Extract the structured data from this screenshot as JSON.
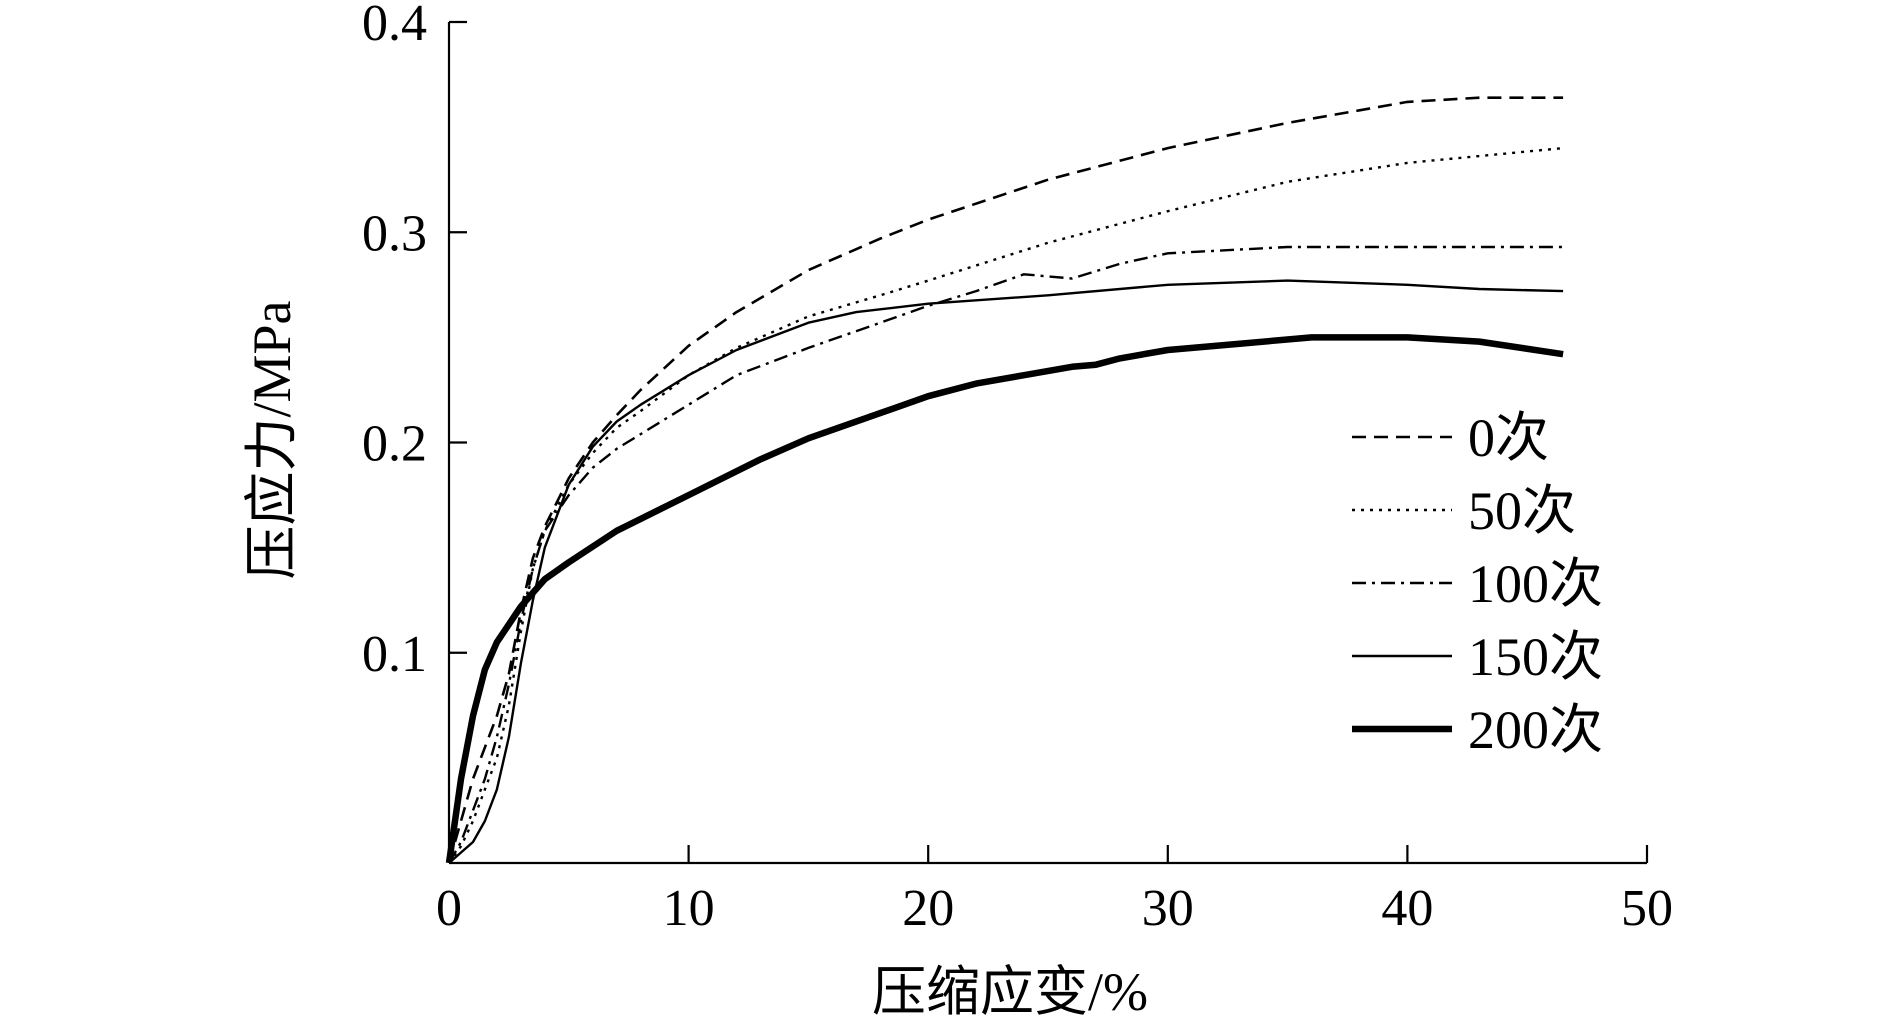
{
  "chart_data": {
    "type": "line",
    "title": "",
    "xlabel": "压缩应变/%",
    "ylabel": "压应力/MPa",
    "xlim": [
      0,
      50
    ],
    "ylim": [
      0,
      0.4
    ],
    "x_ticks": [
      0,
      10,
      20,
      30,
      40,
      50
    ],
    "x_tick_labels": [
      "0",
      "10",
      "20",
      "30",
      "40",
      "50"
    ],
    "y_ticks": [
      0.1,
      0.2,
      0.3,
      0.4
    ],
    "y_tick_labels": [
      "0.1",
      "0.2",
      "0.3",
      "0.4"
    ],
    "grid": false,
    "legend_position": "right",
    "series": [
      {
        "name": "0次",
        "style": "dashed",
        "color": "#000000",
        "points": [
          [
            0,
            0
          ],
          [
            0.5,
            0.02
          ],
          [
            1,
            0.04
          ],
          [
            1.5,
            0.055
          ],
          [
            2,
            0.07
          ],
          [
            2.5,
            0.09
          ],
          [
            3,
            0.12
          ],
          [
            3.5,
            0.145
          ],
          [
            4,
            0.16
          ],
          [
            5,
            0.183
          ],
          [
            6,
            0.2
          ],
          [
            7,
            0.213
          ],
          [
            8,
            0.225
          ],
          [
            10,
            0.246
          ],
          [
            12,
            0.262
          ],
          [
            15,
            0.282
          ],
          [
            18,
            0.297
          ],
          [
            20,
            0.306
          ],
          [
            25,
            0.325
          ],
          [
            30,
            0.34
          ],
          [
            35,
            0.352
          ],
          [
            38,
            0.358
          ],
          [
            40,
            0.362
          ],
          [
            43,
            0.364
          ],
          [
            46.5,
            0.364
          ]
        ]
      },
      {
        "name": "50次",
        "style": "dotted",
        "color": "#000000",
        "points": [
          [
            0,
            0
          ],
          [
            0.5,
            0.008
          ],
          [
            1,
            0.02
          ],
          [
            1.5,
            0.035
          ],
          [
            2,
            0.05
          ],
          [
            2.5,
            0.075
          ],
          [
            3,
            0.11
          ],
          [
            3.5,
            0.14
          ],
          [
            4,
            0.158
          ],
          [
            5,
            0.18
          ],
          [
            6,
            0.195
          ],
          [
            7,
            0.207
          ],
          [
            8,
            0.215
          ],
          [
            10,
            0.232
          ],
          [
            12,
            0.245
          ],
          [
            15,
            0.26
          ],
          [
            18,
            0.27
          ],
          [
            20,
            0.277
          ],
          [
            25,
            0.295
          ],
          [
            30,
            0.31
          ],
          [
            35,
            0.324
          ],
          [
            40,
            0.333
          ],
          [
            46.5,
            0.34
          ]
        ]
      },
      {
        "name": "100次",
        "style": "dashdot",
        "color": "#000000",
        "points": [
          [
            0,
            0
          ],
          [
            0.5,
            0.01
          ],
          [
            1,
            0.025
          ],
          [
            1.5,
            0.04
          ],
          [
            2,
            0.06
          ],
          [
            2.5,
            0.085
          ],
          [
            3,
            0.115
          ],
          [
            3.5,
            0.14
          ],
          [
            4,
            0.158
          ],
          [
            5,
            0.175
          ],
          [
            6,
            0.188
          ],
          [
            7,
            0.197
          ],
          [
            8,
            0.204
          ],
          [
            10,
            0.218
          ],
          [
            12,
            0.232
          ],
          [
            15,
            0.245
          ],
          [
            18,
            0.257
          ],
          [
            20,
            0.265
          ],
          [
            22,
            0.272
          ],
          [
            24,
            0.28
          ],
          [
            26,
            0.278
          ],
          [
            28,
            0.285
          ],
          [
            30,
            0.29
          ],
          [
            35,
            0.293
          ],
          [
            40,
            0.293
          ],
          [
            46.5,
            0.293
          ]
        ]
      },
      {
        "name": "150次",
        "style": "solid-thin",
        "color": "#000000",
        "points": [
          [
            0,
            0
          ],
          [
            0.5,
            0.005
          ],
          [
            1,
            0.01
          ],
          [
            1.5,
            0.02
          ],
          [
            2,
            0.035
          ],
          [
            2.5,
            0.06
          ],
          [
            3,
            0.095
          ],
          [
            3.5,
            0.125
          ],
          [
            4,
            0.15
          ],
          [
            5,
            0.18
          ],
          [
            6,
            0.198
          ],
          [
            7,
            0.21
          ],
          [
            8,
            0.218
          ],
          [
            10,
            0.232
          ],
          [
            12,
            0.244
          ],
          [
            15,
            0.257
          ],
          [
            17,
            0.262
          ],
          [
            20,
            0.266
          ],
          [
            25,
            0.27
          ],
          [
            30,
            0.275
          ],
          [
            35,
            0.277
          ],
          [
            40,
            0.275
          ],
          [
            43,
            0.273
          ],
          [
            46.5,
            0.272
          ]
        ]
      },
      {
        "name": "200次",
        "style": "solid-thick",
        "color": "#000000",
        "points": [
          [
            0,
            0
          ],
          [
            0.5,
            0.04
          ],
          [
            1,
            0.07
          ],
          [
            1.5,
            0.092
          ],
          [
            2,
            0.105
          ],
          [
            3,
            0.122
          ],
          [
            4,
            0.135
          ],
          [
            5,
            0.143
          ],
          [
            7,
            0.158
          ],
          [
            10,
            0.175
          ],
          [
            13,
            0.192
          ],
          [
            15,
            0.202
          ],
          [
            18,
            0.214
          ],
          [
            20,
            0.222
          ],
          [
            22,
            0.228
          ],
          [
            24,
            0.232
          ],
          [
            26,
            0.236
          ],
          [
            27,
            0.237
          ],
          [
            28,
            0.24
          ],
          [
            30,
            0.244
          ],
          [
            33,
            0.247
          ],
          [
            36,
            0.25
          ],
          [
            40,
            0.25
          ],
          [
            43,
            0.248
          ],
          [
            46.5,
            0.242
          ]
        ]
      }
    ]
  }
}
